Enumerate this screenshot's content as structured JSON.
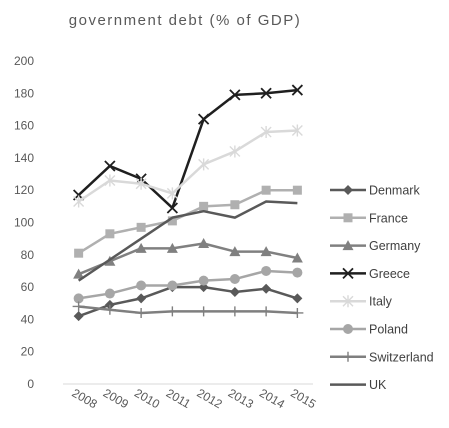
{
  "chart_data": {
    "type": "line",
    "title": "government debt (% of GDP)",
    "xlabel": "",
    "ylabel": "",
    "x": [
      "2008",
      "2009",
      "2010",
      "2011",
      "2012",
      "2013",
      "2014",
      "2015"
    ],
    "ylim": [
      0,
      200
    ],
    "yticks": [
      0,
      20,
      40,
      60,
      80,
      100,
      120,
      140,
      160,
      180,
      200
    ],
    "grid": false,
    "legend_position": "right",
    "series": [
      {
        "name": "Denmark",
        "marker": "diamond",
        "color": "#595959",
        "values": [
          42,
          49,
          53,
          60,
          60,
          57,
          59,
          53
        ]
      },
      {
        "name": "France",
        "marker": "square",
        "color": "#b0b0b0",
        "values": [
          81,
          93,
          97,
          101,
          110,
          111,
          120,
          120
        ]
      },
      {
        "name": "Germany",
        "marker": "triangle",
        "color": "#808080",
        "values": [
          68,
          76,
          84,
          84,
          87,
          82,
          82,
          78
        ]
      },
      {
        "name": "Greece",
        "marker": "x",
        "color": "#1f1f1f",
        "values": [
          117,
          135,
          127,
          109,
          164,
          179,
          180,
          182
        ]
      },
      {
        "name": "Italy",
        "marker": "star",
        "color": "#d9d9d9",
        "values": [
          113,
          126,
          124,
          118,
          136,
          144,
          156,
          157
        ]
      },
      {
        "name": "Poland",
        "marker": "circle",
        "color": "#a6a6a6",
        "values": [
          53,
          56,
          61,
          61,
          64,
          65,
          70,
          69
        ]
      },
      {
        "name": "Switzerland",
        "marker": "plus",
        "color": "#7f7f7f",
        "values": [
          48,
          46,
          44,
          45,
          45,
          45,
          45,
          44
        ]
      },
      {
        "name": "UK",
        "marker": "none",
        "color": "#595959",
        "values": [
          64,
          77,
          90,
          103,
          107,
          103,
          113,
          112
        ]
      }
    ]
  }
}
